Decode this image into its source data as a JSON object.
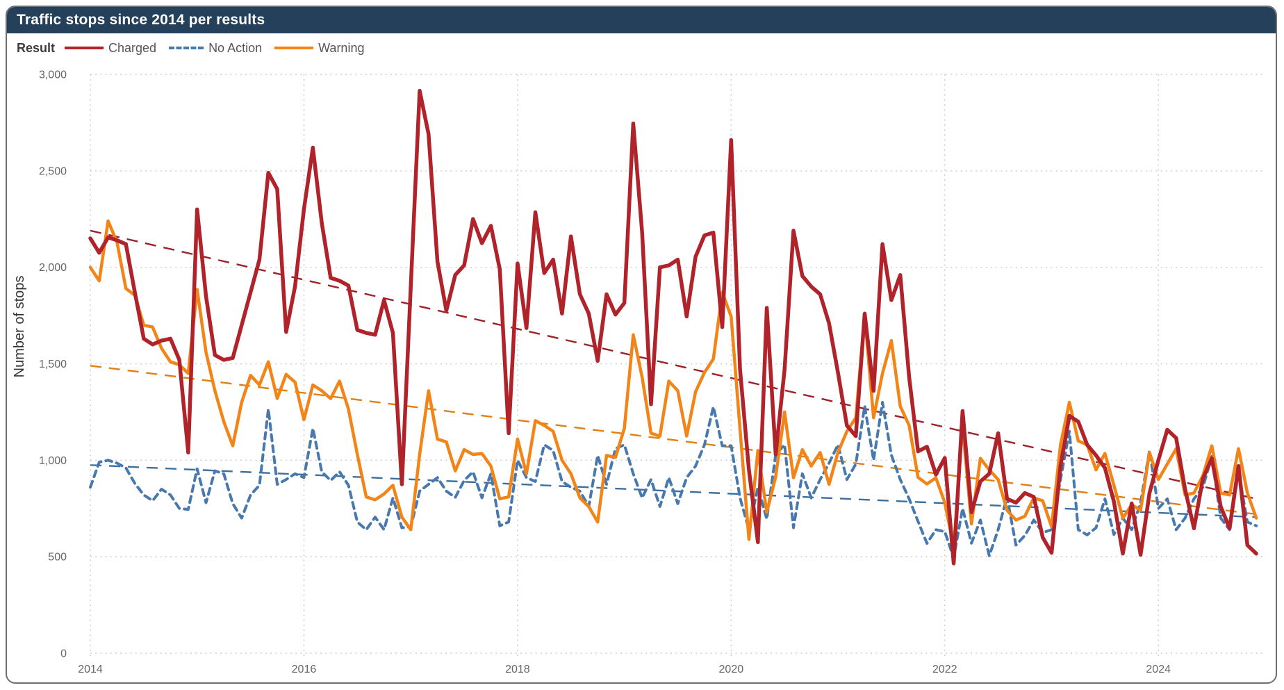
{
  "header": {
    "title": "Traffic stops since 2014 per results"
  },
  "legend": {
    "title": "Result",
    "items": [
      {
        "name": "Charged",
        "color": "#b1232b",
        "line": "solid"
      },
      {
        "name": "No Action",
        "color": "#4879ae",
        "line": "dashed"
      },
      {
        "name": "Warning",
        "color": "#f28418",
        "line": "solid"
      }
    ]
  },
  "colors": {
    "titlebar_bg": "#24405a",
    "titlebar_text": "#ffffff",
    "grid": "#c9c9c9",
    "tick_text": "#666666",
    "axis_title_text": "#333333",
    "card_border": "#6e6e6e"
  },
  "chart_data": {
    "type": "line",
    "title": "Traffic stops since 2014 per results",
    "xlabel": "",
    "ylabel": "Number of stops",
    "ylim": [
      0,
      3000
    ],
    "y_ticks": [
      0,
      500,
      1000,
      1500,
      2000,
      2500,
      3000
    ],
    "y_tick_labels": [
      "0",
      "500",
      "1,000",
      "1,500",
      "2,000",
      "2,500",
      "3,000"
    ],
    "x_tick_years": [
      "2014",
      "2016",
      "2018",
      "2020",
      "2022",
      "2024"
    ],
    "x": {
      "start": "2014-01",
      "end": "2024-12",
      "freq": "monthly",
      "count": 132
    },
    "grid": true,
    "legend_position": "top",
    "series": [
      {
        "name": "Charged",
        "color": "#b1232b",
        "line": "solid",
        "width": 5.5,
        "values": [
          2150,
          2075,
          2155,
          2140,
          2120,
          1870,
          1630,
          1600,
          1620,
          1630,
          1520,
          1040,
          2300,
          1850,
          1545,
          1520,
          1530,
          1700,
          1870,
          2040,
          2490,
          2405,
          1665,
          1900,
          2300,
          2620,
          2230,
          1945,
          1930,
          1905,
          1675,
          1660,
          1650,
          1830,
          1660,
          875,
          1900,
          2915,
          2690,
          2030,
          1775,
          1960,
          2010,
          2250,
          2125,
          2215,
          1990,
          1140,
          2020,
          1685,
          2285,
          1970,
          2040,
          1760,
          2160,
          1860,
          1760,
          1515,
          1860,
          1755,
          1815,
          2745,
          2180,
          1290,
          2000,
          2010,
          2040,
          1745,
          2055,
          2165,
          2180,
          1690,
          2660,
          1470,
          950,
          575,
          1790,
          1030,
          1470,
          2190,
          1955,
          1900,
          1860,
          1710,
          1455,
          1180,
          1125,
          1760,
          1360,
          2120,
          1830,
          1960,
          1430,
          1046,
          1070,
          926,
          1012,
          465,
          1255,
          730,
          890,
          930,
          1140,
          800,
          780,
          830,
          810,
          600,
          520,
          970,
          1230,
          1200,
          1080,
          1025,
          960,
          785,
          516,
          776,
          510,
          830,
          1000,
          1158,
          1115,
          850,
          647,
          905,
          1010,
          760,
          647,
          970,
          560,
          516
        ]
      },
      {
        "name": "No Action",
        "color": "#4879ae",
        "line": "dashed",
        "width": 4,
        "values": [
          860,
          990,
          1000,
          985,
          960,
          880,
          820,
          790,
          850,
          820,
          750,
          745,
          955,
          780,
          945,
          930,
          775,
          700,
          820,
          870,
          1265,
          875,
          900,
          930,
          910,
          1165,
          940,
          895,
          940,
          870,
          680,
          640,
          705,
          640,
          805,
          650,
          655,
          840,
          875,
          910,
          840,
          807,
          895,
          940,
          805,
          930,
          660,
          680,
          1000,
          910,
          890,
          1080,
          1050,
          890,
          860,
          840,
          760,
          1025,
          875,
          1060,
          1080,
          930,
          805,
          900,
          760,
          910,
          775,
          910,
          970,
          1080,
          1277,
          1075,
          1075,
          805,
          640,
          860,
          695,
          1030,
          1080,
          650,
          930,
          805,
          900,
          985,
          1080,
          900,
          980,
          1280,
          1000,
          1300,
          1027,
          900,
          800,
          683,
          569,
          640,
          630,
          494,
          750,
          570,
          690,
          505,
          640,
          810,
          560,
          610,
          690,
          625,
          640,
          900,
          1150,
          640,
          613,
          650,
          800,
          615,
          700,
          640,
          780,
          1050,
          750,
          800,
          640,
          700,
          800,
          860,
          1020,
          700,
          640,
          940,
          680,
          660
        ]
      },
      {
        "name": "Warning",
        "color": "#f28418",
        "line": "solid",
        "width": 4.5,
        "values": [
          2000,
          1930,
          2240,
          2130,
          1890,
          1855,
          1700,
          1690,
          1580,
          1510,
          1495,
          1450,
          1885,
          1560,
          1360,
          1200,
          1075,
          1300,
          1440,
          1390,
          1510,
          1320,
          1445,
          1405,
          1210,
          1390,
          1360,
          1320,
          1410,
          1265,
          1030,
          810,
          795,
          825,
          870,
          705,
          640,
          1030,
          1360,
          1110,
          1095,
          945,
          1055,
          1030,
          1035,
          970,
          800,
          810,
          1110,
          930,
          1205,
          1180,
          1150,
          1000,
          930,
          805,
          760,
          680,
          1025,
          1015,
          1165,
          1650,
          1430,
          1140,
          1125,
          1410,
          1360,
          1125,
          1355,
          1455,
          1525,
          1870,
          1745,
          1160,
          590,
          1050,
          730,
          915,
          1250,
          910,
          1055,
          970,
          1040,
          875,
          1040,
          1150,
          1220,
          1750,
          1220,
          1450,
          1620,
          1280,
          1180,
          911,
          877,
          909,
          780,
          550,
          1180,
          670,
          1010,
          950,
          900,
          740,
          690,
          710,
          805,
          790,
          655,
          1080,
          1300,
          1100,
          1080,
          950,
          1035,
          870,
          700,
          770,
          740,
          1040,
          900,
          980,
          1060,
          820,
          830,
          920,
          1075,
          830,
          820,
          1060,
          830,
          700
        ]
      }
    ],
    "trend_lines": [
      {
        "series": "Charged",
        "color": "#a02028",
        "start_value": 2190,
        "end_value": 800
      },
      {
        "series": "No Action",
        "color": "#3c6f9e",
        "start_value": 975,
        "end_value": 705
      },
      {
        "series": "Warning",
        "color": "#e07f12",
        "start_value": 1490,
        "end_value": 720
      }
    ]
  }
}
